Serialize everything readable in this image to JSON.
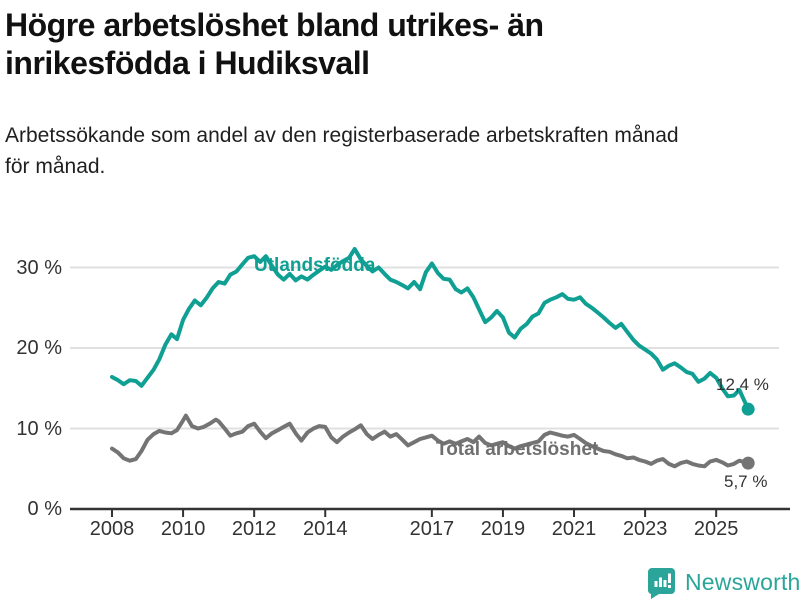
{
  "header": {
    "title_line1": "Högre arbetslöshet bland utrikes- än",
    "title_line2": "inrikesfödda i Hudiksvall",
    "subtitle_line1": "Arbetssökande som andel av den registerbaserade arbetskraften månad",
    "subtitle_line2": "för månad."
  },
  "footer": {
    "logo_text": "Newsworthy",
    "logo_color": "#2ba59a"
  },
  "chart_data": {
    "type": "line",
    "title": "Högre arbetslöshet bland utrikes- än inrikesfödda i Hudiksvall",
    "subtitle": "Arbetssökande som andel av den registerbaserade arbetskraften månad för månad.",
    "xlabel": "",
    "ylabel": "",
    "grid": "horizontal",
    "grid_color": "#e0e0e0",
    "axis_color": "#333333",
    "x_axis": {
      "ticks": [
        2008,
        2010,
        2012,
        2014,
        2017,
        2019,
        2021,
        2023,
        2025
      ],
      "tick_labels": [
        "2008",
        "2010",
        "2012",
        "2014",
        "2017",
        "2019",
        "2021",
        "2023",
        "2025"
      ],
      "range": [
        2006.8,
        2026.9
      ]
    },
    "y_axis": {
      "ticks": [
        0,
        10,
        20,
        30
      ],
      "tick_labels": [
        "0 %",
        "10 %",
        "20 %",
        "30 %"
      ],
      "range": [
        0,
        34.5
      ]
    },
    "series": [
      {
        "name": "Utlandsfödda",
        "color": "#0f9f93",
        "end_label": "12,4 %",
        "end_value": 12.4,
        "points": [
          [
            2008.0,
            16.4
          ],
          [
            2008.17,
            16.0
          ],
          [
            2008.33,
            15.5
          ],
          [
            2008.5,
            16.0
          ],
          [
            2008.67,
            15.9
          ],
          [
            2008.83,
            15.3
          ],
          [
            2009.0,
            16.3
          ],
          [
            2009.17,
            17.3
          ],
          [
            2009.33,
            18.6
          ],
          [
            2009.5,
            20.4
          ],
          [
            2009.67,
            21.7
          ],
          [
            2009.83,
            21.1
          ],
          [
            2010.0,
            23.5
          ],
          [
            2010.17,
            24.9
          ],
          [
            2010.33,
            25.9
          ],
          [
            2010.5,
            25.3
          ],
          [
            2010.67,
            26.3
          ],
          [
            2010.83,
            27.4
          ],
          [
            2011.0,
            28.2
          ],
          [
            2011.17,
            28.0
          ],
          [
            2011.33,
            29.1
          ],
          [
            2011.5,
            29.5
          ],
          [
            2011.67,
            30.4
          ],
          [
            2011.83,
            31.2
          ],
          [
            2012.0,
            31.4
          ],
          [
            2012.17,
            30.7
          ],
          [
            2012.33,
            31.4
          ],
          [
            2012.5,
            30.2
          ],
          [
            2012.67,
            29.1
          ],
          [
            2012.83,
            28.5
          ],
          [
            2013.0,
            29.2
          ],
          [
            2013.17,
            28.4
          ],
          [
            2013.33,
            28.9
          ],
          [
            2013.5,
            28.5
          ],
          [
            2013.67,
            29.1
          ],
          [
            2013.83,
            29.6
          ],
          [
            2014.0,
            30.1
          ],
          [
            2014.17,
            29.7
          ],
          [
            2014.33,
            30.3
          ],
          [
            2014.5,
            30.8
          ],
          [
            2014.67,
            31.2
          ],
          [
            2014.83,
            32.3
          ],
          [
            2015.0,
            31.0
          ],
          [
            2015.17,
            30.2
          ],
          [
            2015.33,
            29.5
          ],
          [
            2015.5,
            30.0
          ],
          [
            2015.67,
            29.2
          ],
          [
            2015.83,
            28.5
          ],
          [
            2016.0,
            28.2
          ],
          [
            2016.17,
            27.8
          ],
          [
            2016.33,
            27.4
          ],
          [
            2016.5,
            28.2
          ],
          [
            2016.67,
            27.3
          ],
          [
            2016.83,
            29.4
          ],
          [
            2017.0,
            30.5
          ],
          [
            2017.17,
            29.3
          ],
          [
            2017.33,
            28.6
          ],
          [
            2017.5,
            28.5
          ],
          [
            2017.67,
            27.3
          ],
          [
            2017.83,
            26.9
          ],
          [
            2018.0,
            27.4
          ],
          [
            2018.17,
            26.3
          ],
          [
            2018.33,
            24.8
          ],
          [
            2018.5,
            23.2
          ],
          [
            2018.67,
            23.8
          ],
          [
            2018.83,
            24.6
          ],
          [
            2019.0,
            23.8
          ],
          [
            2019.17,
            21.9
          ],
          [
            2019.33,
            21.3
          ],
          [
            2019.5,
            22.4
          ],
          [
            2019.67,
            23.0
          ],
          [
            2019.83,
            23.9
          ],
          [
            2020.0,
            24.3
          ],
          [
            2020.17,
            25.6
          ],
          [
            2020.33,
            26.0
          ],
          [
            2020.5,
            26.3
          ],
          [
            2020.67,
            26.7
          ],
          [
            2020.83,
            26.1
          ],
          [
            2021.0,
            26.0
          ],
          [
            2021.17,
            26.3
          ],
          [
            2021.33,
            25.5
          ],
          [
            2021.5,
            25.0
          ],
          [
            2021.67,
            24.4
          ],
          [
            2021.83,
            23.8
          ],
          [
            2022.0,
            23.1
          ],
          [
            2022.17,
            22.5
          ],
          [
            2022.33,
            23.0
          ],
          [
            2022.5,
            22.0
          ],
          [
            2022.67,
            21.0
          ],
          [
            2022.83,
            20.3
          ],
          [
            2023.0,
            19.8
          ],
          [
            2023.17,
            19.3
          ],
          [
            2023.33,
            18.6
          ],
          [
            2023.5,
            17.3
          ],
          [
            2023.67,
            17.8
          ],
          [
            2023.83,
            18.1
          ],
          [
            2024.0,
            17.6
          ],
          [
            2024.17,
            17.0
          ],
          [
            2024.33,
            16.8
          ],
          [
            2024.5,
            15.8
          ],
          [
            2024.67,
            16.2
          ],
          [
            2024.83,
            16.9
          ],
          [
            2025.0,
            16.3
          ],
          [
            2025.17,
            15.0
          ],
          [
            2025.33,
            14.0
          ],
          [
            2025.5,
            14.1
          ],
          [
            2025.65,
            14.8
          ],
          [
            2025.9,
            12.4
          ]
        ]
      },
      {
        "name": "Total arbetslöshet",
        "color": "#747474",
        "end_label": "5,7 %",
        "end_value": 5.7,
        "points": [
          [
            2008.0,
            7.5
          ],
          [
            2008.17,
            7.0
          ],
          [
            2008.33,
            6.3
          ],
          [
            2008.5,
            6.0
          ],
          [
            2008.67,
            6.2
          ],
          [
            2008.83,
            7.2
          ],
          [
            2009.0,
            8.6
          ],
          [
            2009.17,
            9.3
          ],
          [
            2009.33,
            9.7
          ],
          [
            2009.5,
            9.5
          ],
          [
            2009.67,
            9.4
          ],
          [
            2009.83,
            9.8
          ],
          [
            2010.0,
            11.0
          ],
          [
            2010.08,
            11.6
          ],
          [
            2010.25,
            10.3
          ],
          [
            2010.42,
            10.0
          ],
          [
            2010.58,
            10.2
          ],
          [
            2010.75,
            10.6
          ],
          [
            2010.92,
            11.1
          ],
          [
            2011.0,
            10.9
          ],
          [
            2011.17,
            10.0
          ],
          [
            2011.33,
            9.1
          ],
          [
            2011.5,
            9.4
          ],
          [
            2011.67,
            9.6
          ],
          [
            2011.83,
            10.3
          ],
          [
            2012.0,
            10.6
          ],
          [
            2012.17,
            9.6
          ],
          [
            2012.33,
            8.8
          ],
          [
            2012.5,
            9.4
          ],
          [
            2012.67,
            9.8
          ],
          [
            2012.83,
            10.2
          ],
          [
            2013.0,
            10.6
          ],
          [
            2013.17,
            9.4
          ],
          [
            2013.33,
            8.5
          ],
          [
            2013.5,
            9.5
          ],
          [
            2013.67,
            10.0
          ],
          [
            2013.83,
            10.3
          ],
          [
            2014.0,
            10.2
          ],
          [
            2014.17,
            8.9
          ],
          [
            2014.33,
            8.3
          ],
          [
            2014.5,
            9.0
          ],
          [
            2014.67,
            9.5
          ],
          [
            2014.83,
            9.9
          ],
          [
            2015.0,
            10.4
          ],
          [
            2015.17,
            9.3
          ],
          [
            2015.33,
            8.7
          ],
          [
            2015.5,
            9.2
          ],
          [
            2015.67,
            9.6
          ],
          [
            2015.83,
            9.0
          ],
          [
            2016.0,
            9.3
          ],
          [
            2016.17,
            8.6
          ],
          [
            2016.33,
            7.9
          ],
          [
            2016.5,
            8.3
          ],
          [
            2016.67,
            8.7
          ],
          [
            2016.83,
            8.9
          ],
          [
            2017.0,
            9.1
          ],
          [
            2017.17,
            8.5
          ],
          [
            2017.33,
            8.1
          ],
          [
            2017.5,
            8.4
          ],
          [
            2017.67,
            8.1
          ],
          [
            2017.83,
            8.4
          ],
          [
            2018.0,
            8.7
          ],
          [
            2018.17,
            8.3
          ],
          [
            2018.33,
            9.0
          ],
          [
            2018.5,
            8.2
          ],
          [
            2018.67,
            7.9
          ],
          [
            2018.83,
            8.1
          ],
          [
            2019.0,
            8.3
          ],
          [
            2019.17,
            7.8
          ],
          [
            2019.33,
            7.5
          ],
          [
            2019.5,
            7.8
          ],
          [
            2019.67,
            8.0
          ],
          [
            2019.83,
            8.2
          ],
          [
            2020.0,
            8.4
          ],
          [
            2020.17,
            9.2
          ],
          [
            2020.33,
            9.5
          ],
          [
            2020.5,
            9.3
          ],
          [
            2020.67,
            9.1
          ],
          [
            2020.83,
            9.0
          ],
          [
            2021.0,
            9.2
          ],
          [
            2021.17,
            8.7
          ],
          [
            2021.33,
            8.2
          ],
          [
            2021.5,
            7.8
          ],
          [
            2021.67,
            7.5
          ],
          [
            2021.83,
            7.2
          ],
          [
            2022.0,
            7.1
          ],
          [
            2022.17,
            6.8
          ],
          [
            2022.33,
            6.6
          ],
          [
            2022.5,
            6.3
          ],
          [
            2022.67,
            6.4
          ],
          [
            2022.83,
            6.1
          ],
          [
            2023.0,
            5.9
          ],
          [
            2023.17,
            5.6
          ],
          [
            2023.33,
            6.0
          ],
          [
            2023.5,
            6.2
          ],
          [
            2023.67,
            5.6
          ],
          [
            2023.83,
            5.3
          ],
          [
            2024.0,
            5.7
          ],
          [
            2024.17,
            5.9
          ],
          [
            2024.33,
            5.6
          ],
          [
            2024.5,
            5.4
          ],
          [
            2024.67,
            5.3
          ],
          [
            2024.83,
            5.9
          ],
          [
            2025.0,
            6.1
          ],
          [
            2025.17,
            5.8
          ],
          [
            2025.33,
            5.4
          ],
          [
            2025.5,
            5.6
          ],
          [
            2025.65,
            6.0
          ],
          [
            2025.9,
            5.7
          ]
        ]
      }
    ],
    "legend_position": "inline-labels"
  }
}
